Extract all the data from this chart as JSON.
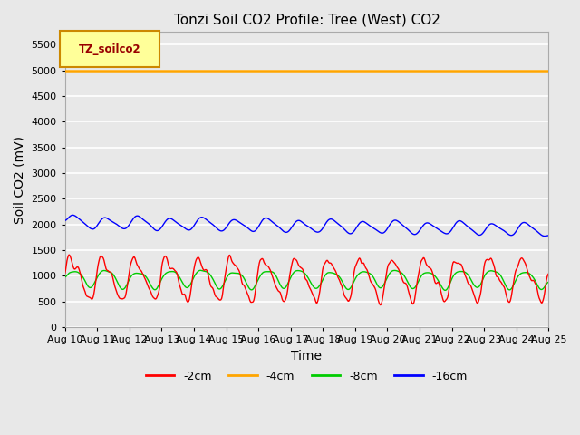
{
  "title": "Tonzi Soil CO2 Profile: Tree (West) CO2",
  "xlabel": "Time",
  "ylabel": "Soil CO2 (mV)",
  "ylim": [
    0,
    5750
  ],
  "yticks": [
    0,
    500,
    1000,
    1500,
    2000,
    2500,
    3000,
    3500,
    4000,
    4500,
    5000,
    5500
  ],
  "x_tick_labels": [
    "Aug 10",
    "Aug 11",
    "Aug 12",
    "Aug 13",
    "Aug 14",
    "Aug 15",
    "Aug 16",
    "Aug 17",
    "Aug 18",
    "Aug 19",
    "Aug 20",
    "Aug 21",
    "Aug 22",
    "Aug 23",
    "Aug 24",
    "Aug 25"
  ],
  "n_days": 15,
  "line_neg4cm_value": 5000,
  "line_neg4cm_color": "#FFA500",
  "line_neg2cm_color": "#FF0000",
  "line_neg8cm_color": "#00CC00",
  "line_neg16cm_color": "#0000FF",
  "legend_box_label": "TZ_soilco2",
  "legend_box_facecolor": "#FFFF99",
  "legend_box_edgecolor": "#CC8800",
  "legend_text_color": "#990000",
  "background_color": "#E8E8E8",
  "grid_color": "#FFFFFF",
  "title_fontsize": 11,
  "axis_label_fontsize": 10,
  "tick_fontsize": 8,
  "linewidth_thin": 1.0,
  "linewidth_orange": 1.8
}
